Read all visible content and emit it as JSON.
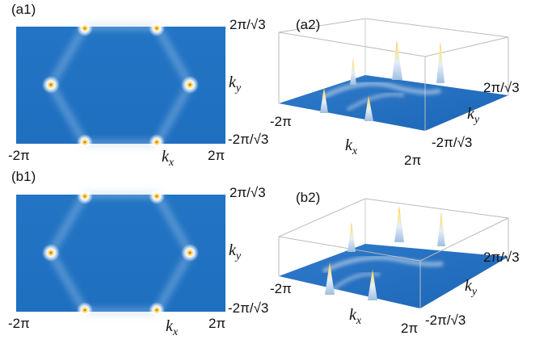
{
  "panels": [
    {
      "id": "a1",
      "label": "(a1)",
      "x_left": "-2π",
      "x_right": "2π",
      "x_axis": "kx",
      "y_top": "2π/√3",
      "y_bottom": "-2π/√3",
      "y_axis": "ky"
    },
    {
      "id": "a2",
      "label": "(a2)",
      "x_left": "-2π",
      "x_right": "2π",
      "x_axis": "kx",
      "y_top": "2π/√3",
      "y_bottom": "-2π/√3",
      "y_axis": "ky"
    },
    {
      "id": "b1",
      "label": "(b1)",
      "x_left": "-2π",
      "x_right": "2π",
      "x_axis": "kx",
      "y_top": "2π/√3",
      "y_bottom": "-2π/√3",
      "y_axis": "ky"
    },
    {
      "id": "b2",
      "label": "(b2)",
      "x_left": "-2π",
      "x_right": "2π",
      "x_axis": "kx",
      "y_top": "2π/√3",
      "y_bottom": "-2π/√3",
      "y_axis": "ky"
    }
  ],
  "colors": {
    "background_blue": "#1f6fc0",
    "peak_core": "#ffd23a",
    "peak_glow": "#ffffff",
    "surface_ridge": "#a9c3de"
  }
}
